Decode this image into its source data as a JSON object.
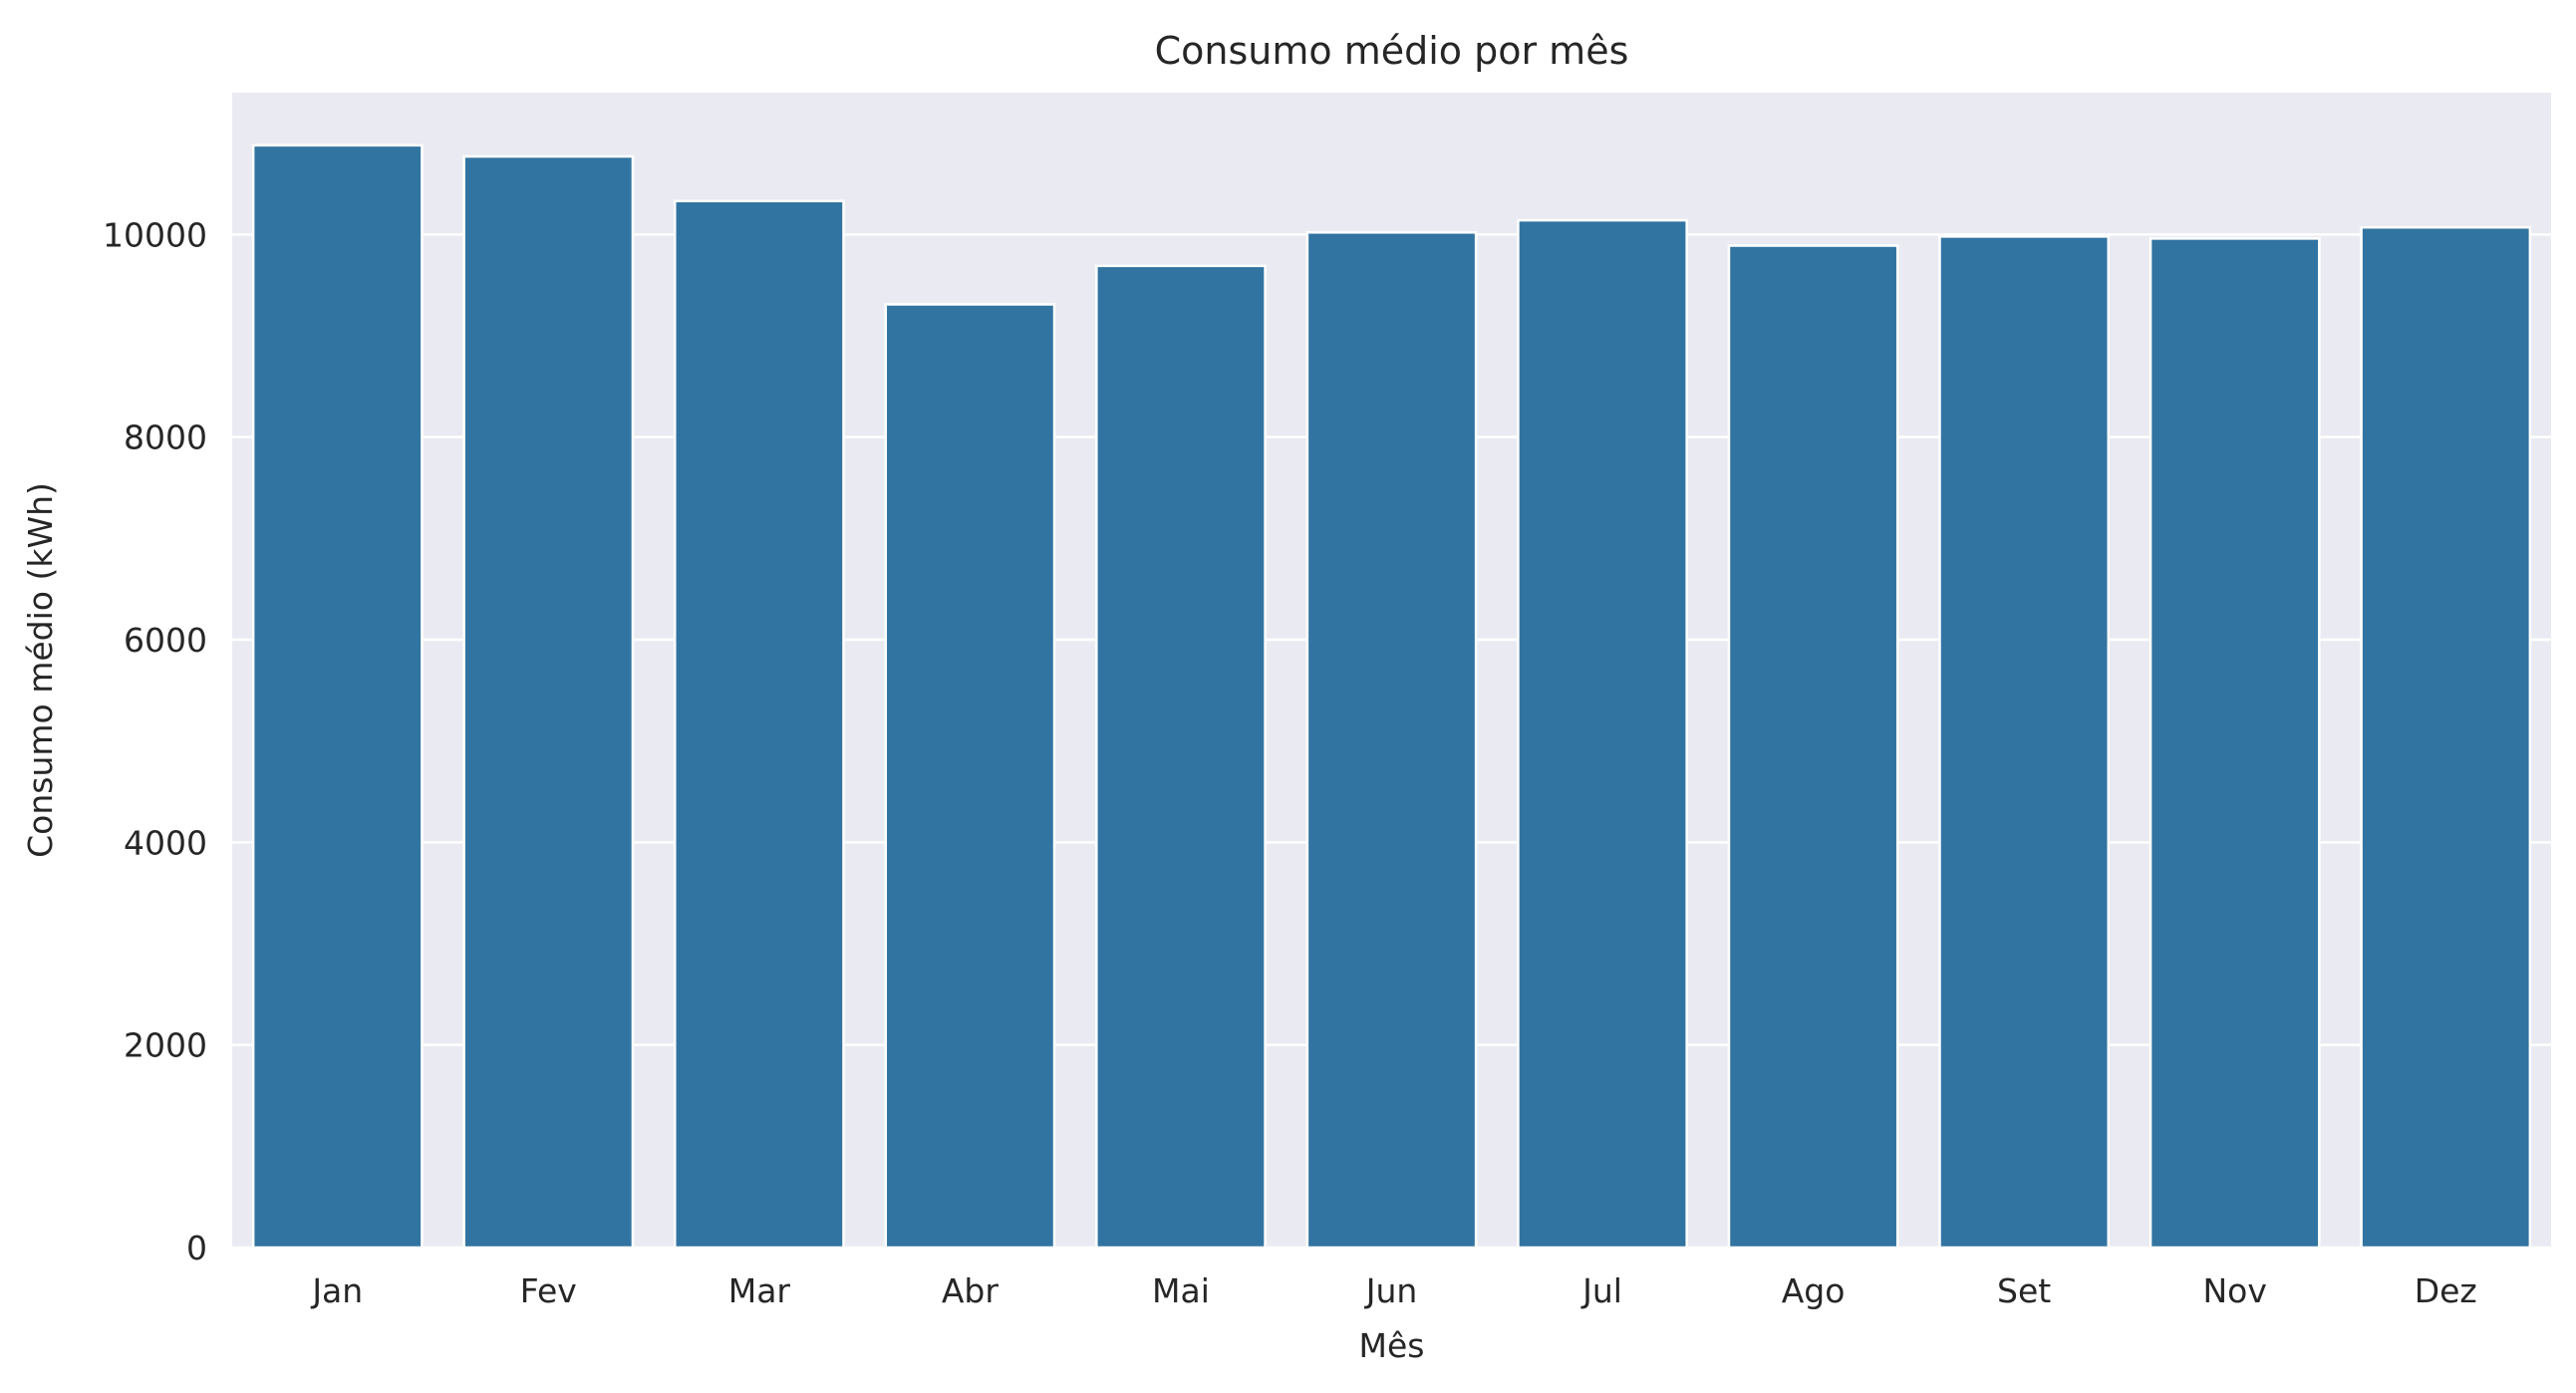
{
  "chart_data": {
    "type": "bar",
    "title": "Consumo médio por mês",
    "xlabel": "Mês",
    "ylabel": "Consumo médio (kWh)",
    "categories": [
      "Jan",
      "Fev",
      "Mar",
      "Abr",
      "Mai",
      "Jun",
      "Jul",
      "Ago",
      "Set",
      "Nov",
      "Dez"
    ],
    "values": [
      10880,
      10770,
      10330,
      9310,
      9690,
      10020,
      10140,
      9890,
      9980,
      9960,
      10070
    ],
    "yticks": [
      0,
      2000,
      4000,
      6000,
      8000,
      10000
    ],
    "ylim": [
      0,
      11400
    ],
    "grid": true,
    "colors": {
      "bar": "#3274a1",
      "plot_background": "#eaeaf2",
      "grid": "#ffffff"
    }
  }
}
